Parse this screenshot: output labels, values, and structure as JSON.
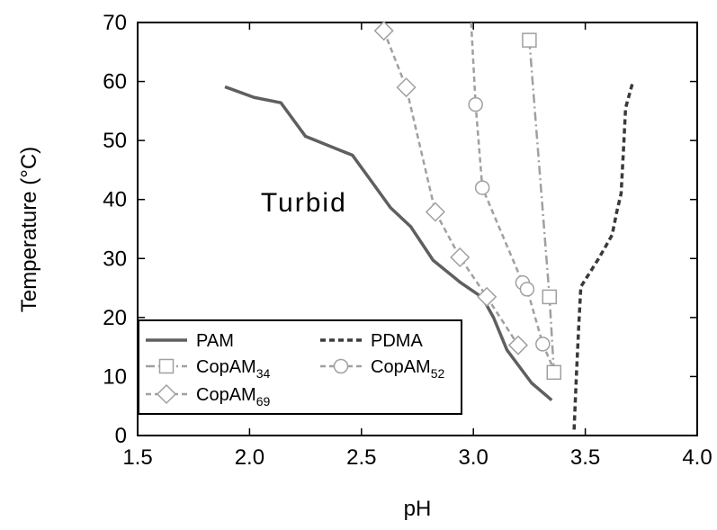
{
  "chart_data": {
    "type": "line",
    "xlabel": "pH",
    "ylabel": "Temperature (°C)",
    "xlim": [
      1.5,
      4.0
    ],
    "ylim": [
      0,
      70
    ],
    "x_ticks": [
      "1.5",
      "2.0",
      "2.5",
      "3.0",
      "3.5",
      "4.0"
    ],
    "y_ticks": [
      "0",
      "10",
      "20",
      "30",
      "40",
      "50",
      "60",
      "70"
    ],
    "grid": false,
    "legend_placement": "bottom-left",
    "annotations": [
      {
        "text": "Turbid",
        "x": 2.05,
        "y": 38
      }
    ],
    "series": [
      {
        "name": "PAM",
        "legend_base": "PAM",
        "legend_sub": "",
        "color": "#5f5f5f",
        "dash": "solid",
        "marker": "none",
        "points": [
          [
            1.89,
            59.1
          ],
          [
            2.02,
            57.3
          ],
          [
            2.14,
            56.4
          ],
          [
            2.25,
            50.7
          ],
          [
            2.46,
            47.5
          ],
          [
            2.55,
            42.8
          ],
          [
            2.63,
            38.6
          ],
          [
            2.72,
            35.4
          ],
          [
            2.82,
            29.7
          ],
          [
            2.94,
            26.0
          ],
          [
            3.04,
            23.4
          ],
          [
            3.09,
            20.0
          ],
          [
            3.15,
            14.5
          ],
          [
            3.26,
            8.9
          ],
          [
            3.35,
            6.0
          ]
        ]
      },
      {
        "name": "PDMA",
        "legend_base": "PDMA",
        "legend_sub": "",
        "color": "#3a3a3a",
        "dash": "dashed",
        "marker": "none",
        "points": [
          [
            3.45,
            1.0
          ],
          [
            3.46,
            10.0
          ],
          [
            3.47,
            18.0
          ],
          [
            3.48,
            25.2
          ],
          [
            3.56,
            30.0
          ],
          [
            3.62,
            34.0
          ],
          [
            3.64,
            37.8
          ],
          [
            3.66,
            41.0
          ],
          [
            3.67,
            48.0
          ],
          [
            3.68,
            55.5
          ],
          [
            3.71,
            59.6
          ]
        ]
      },
      {
        "name": "CopAM34",
        "legend_base": "CopAM",
        "legend_sub": "34",
        "color": "#a0a0a0",
        "dash": "dashdot",
        "marker": "square",
        "points": [
          [
            3.25,
            67.0
          ],
          [
            3.34,
            23.5
          ],
          [
            3.36,
            10.7
          ]
        ]
      },
      {
        "name": "CopAM52",
        "legend_base": "CopAM",
        "legend_sub": "52",
        "color": "#a0a0a0",
        "dash": "dashed",
        "marker": "circle",
        "points": [
          [
            2.99,
            70.0
          ],
          [
            3.01,
            56.1
          ],
          [
            3.04,
            42.0
          ],
          [
            3.22,
            25.9
          ],
          [
            3.24,
            24.8
          ],
          [
            3.31,
            15.5
          ],
          [
            3.35,
            12.0
          ]
        ]
      },
      {
        "name": "CopAM69",
        "legend_base": "CopAM",
        "legend_sub": "69",
        "color": "#a0a0a0",
        "dash": "dashed",
        "marker": "diamond",
        "points": [
          [
            2.6,
            68.6
          ],
          [
            2.7,
            59.0
          ],
          [
            2.83,
            37.9
          ],
          [
            2.94,
            30.2
          ],
          [
            3.06,
            23.5
          ],
          [
            3.2,
            15.3
          ]
        ]
      }
    ]
  }
}
